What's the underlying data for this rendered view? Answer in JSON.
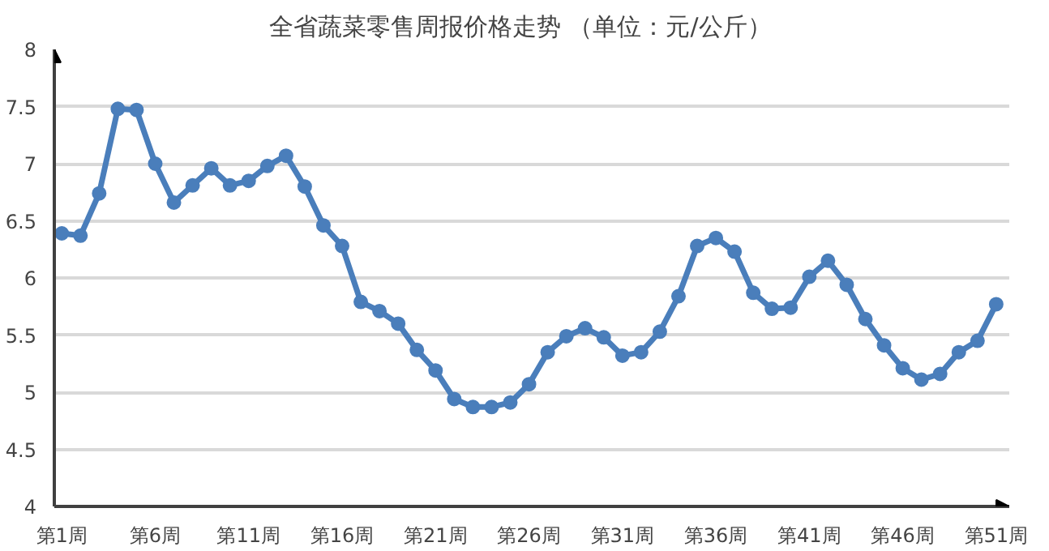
{
  "chart_data": {
    "type": "line",
    "title": "全省蔬菜零售周报价格走势    （单位：元/公斤）",
    "categories": [
      "第1周",
      null,
      null,
      null,
      null,
      "第6周",
      null,
      null,
      null,
      null,
      "第11周",
      null,
      null,
      null,
      null,
      "第16周",
      null,
      null,
      null,
      null,
      "第21周",
      null,
      null,
      null,
      null,
      "第26周",
      null,
      null,
      null,
      null,
      "第31周",
      null,
      null,
      null,
      null,
      "第36周",
      null,
      null,
      null,
      null,
      "第41周",
      null,
      null,
      null,
      null,
      "第46周",
      null,
      null,
      null,
      null,
      "第51周"
    ],
    "series": [
      {
        "color": "#4a7ebb",
        "values": [
          6.39,
          6.37,
          6.74,
          7.48,
          7.47,
          7.0,
          6.66,
          6.81,
          6.96,
          6.81,
          6.85,
          6.98,
          7.07,
          6.8,
          6.46,
          6.28,
          5.79,
          5.71,
          5.6,
          5.37,
          5.19,
          4.94,
          4.87,
          4.87,
          4.91,
          5.07,
          5.35,
          5.49,
          5.56,
          5.48,
          5.32,
          5.35,
          5.53,
          5.84,
          6.28,
          6.35,
          6.23,
          5.87,
          5.73,
          5.74,
          6.01,
          6.15,
          5.94,
          5.64,
          5.41,
          5.21,
          5.11,
          5.16,
          5.35,
          5.45,
          5.77
        ]
      }
    ],
    "ylim": [
      4,
      8
    ],
    "yticks": [
      4,
      4.5,
      5,
      5.5,
      6,
      6.5,
      7,
      7.5,
      8
    ],
    "grid": "y",
    "marker": "circle",
    "line_style": "solid"
  }
}
